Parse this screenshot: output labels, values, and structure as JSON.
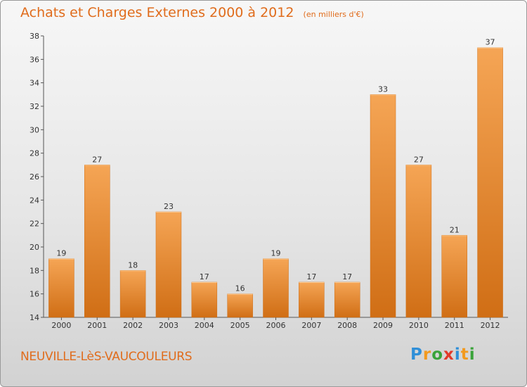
{
  "header": {
    "title": "Achats et Charges Externes 2000 à 2012",
    "unit": "(en milliers d'€)"
  },
  "footer": {
    "town": "NEUVILLE-LèS-VAUCOULEURS"
  },
  "brand": {
    "letters": [
      "P",
      "r",
      "o",
      "x",
      "i",
      "t",
      "i"
    ],
    "colors": [
      "#2f8fd8",
      "#f29a1f",
      "#3aa33a",
      "#e23a2a",
      "#2f8fd8",
      "#f29a1f",
      "#3aa33a"
    ]
  },
  "chart_data": {
    "type": "bar",
    "categories": [
      "2000",
      "2001",
      "2002",
      "2003",
      "2004",
      "2005",
      "2006",
      "2007",
      "2008",
      "2009",
      "2010",
      "2011",
      "2012"
    ],
    "values": [
      19,
      27,
      18,
      23,
      17,
      16,
      19,
      17,
      17,
      33,
      27,
      21,
      37
    ],
    "ylim": [
      14,
      38
    ],
    "yticks": [
      "14",
      "16",
      "18",
      "20",
      "22",
      "24",
      "26",
      "28",
      "30",
      "32",
      "34",
      "36",
      "38"
    ],
    "grid": false,
    "bar_color": "#e88a2e",
    "bar_color_light": "#f5a555",
    "bar_color_dark": "#d06e15"
  }
}
